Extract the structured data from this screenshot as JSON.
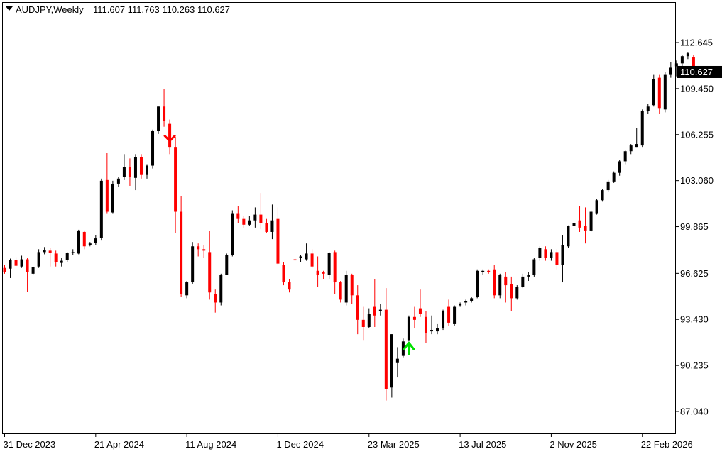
{
  "header": {
    "symbol_timeframe": "AUDJPY,Weekly",
    "ohlc": "111.607 111.763 110.263 110.627"
  },
  "colors": {
    "background": "#ffffff",
    "frame": "#000000",
    "bull": "#000000",
    "bear": "#ff0000",
    "buy_arrow": "#00e000",
    "sell_arrow": "#ff0000",
    "price_label_bg": "#000000",
    "price_label_text": "#ffffff"
  },
  "price_axis": {
    "ticks": [
      "112.645",
      "109.450",
      "106.255",
      "103.060",
      "99.865",
      "96.625",
      "93.430",
      "90.235",
      "87.040"
    ],
    "current_price_label": "110.627"
  },
  "time_axis": {
    "labels": [
      "31 Dec 2023",
      "21 Apr 2024",
      "11 Aug 2024",
      "1 Dec 2024",
      "23 Mar 2025",
      "13 Jul 2025",
      "2 Nov 2025",
      "22 Feb 2026"
    ]
  },
  "chart_data": {
    "type": "candlestick",
    "instrument": "AUDJPY",
    "timeframe": "Weekly",
    "ylim": [
      86.5,
      114.4
    ],
    "current_price": 110.627,
    "grid": false,
    "x_labels": [
      "31 Dec 2023",
      "21 Apr 2024",
      "11 Aug 2024",
      "1 Dec 2024",
      "23 Mar 2025",
      "13 Jul 2025",
      "2 Nov 2025",
      "22 Feb 2026"
    ],
    "x_label_candle_index": [
      0,
      16,
      32,
      48,
      64,
      80,
      96,
      112
    ],
    "ohlc": [
      [
        97.0,
        97.2,
        96.6,
        96.7
      ],
      [
        96.95,
        97.65,
        96.3,
        97.55
      ],
      [
        97.55,
        97.75,
        97.1,
        97.15
      ],
      [
        97.1,
        97.85,
        97.0,
        97.6
      ],
      [
        97.6,
        97.7,
        95.35,
        96.7
      ],
      [
        96.6,
        97.1,
        96.5,
        97.05
      ],
      [
        97.1,
        98.3,
        97.0,
        98.1
      ],
      [
        98.1,
        98.45,
        97.95,
        98.25
      ],
      [
        98.2,
        98.4,
        97.1,
        98.05
      ],
      [
        98.0,
        98.2,
        97.1,
        97.4
      ],
      [
        97.35,
        97.7,
        97.1,
        97.5
      ],
      [
        97.55,
        98.1,
        97.4,
        98.05
      ],
      [
        98.1,
        98.3,
        97.9,
        98.1
      ],
      [
        98.0,
        99.65,
        97.95,
        99.6
      ],
      [
        99.5,
        99.6,
        98.3,
        98.5
      ],
      [
        98.6,
        98.8,
        98.5,
        98.7
      ],
      [
        98.75,
        99.3,
        98.6,
        99.05
      ],
      [
        99.1,
        103.2,
        98.9,
        103.05
      ],
      [
        103.1,
        105.0,
        100.8,
        100.9
      ],
      [
        100.85,
        103.05,
        100.8,
        102.8
      ],
      [
        102.85,
        103.3,
        102.6,
        103.2
      ],
      [
        103.3,
        104.9,
        103.1,
        104.0
      ],
      [
        104.0,
        104.6,
        102.7,
        103.3
      ],
      [
        103.25,
        104.9,
        102.4,
        104.7
      ],
      [
        104.7,
        104.9,
        103.2,
        103.5
      ],
      [
        103.5,
        104.2,
        103.2,
        104.1
      ],
      [
        104.1,
        106.6,
        103.9,
        106.5
      ],
      [
        106.5,
        108.2,
        106.3,
        108.2
      ],
      [
        108.2,
        109.4,
        106.8,
        107.2
      ],
      [
        107.0,
        107.3,
        104.9,
        105.4
      ],
      [
        105.4,
        106.1,
        99.4,
        100.9
      ],
      [
        100.9,
        102.0,
        95.0,
        95.2
      ],
      [
        95.1,
        96.1,
        94.9,
        96.0
      ],
      [
        96.0,
        98.8,
        95.9,
        98.5
      ],
      [
        98.5,
        98.7,
        97.8,
        98.3
      ],
      [
        98.3,
        98.6,
        97.7,
        98.2
      ],
      [
        98.1,
        99.55,
        94.8,
        95.3
      ],
      [
        95.2,
        95.5,
        93.9,
        94.6
      ],
      [
        94.6,
        96.6,
        94.4,
        96.5
      ],
      [
        96.5,
        98.0,
        96.5,
        97.9
      ],
      [
        97.9,
        101.0,
        97.8,
        100.8
      ],
      [
        100.8,
        101.3,
        100.1,
        100.4
      ],
      [
        100.4,
        100.6,
        99.8,
        100.0
      ],
      [
        100.0,
        100.6,
        99.9,
        100.3
      ],
      [
        100.3,
        101.2,
        99.8,
        100.7
      ],
      [
        100.7,
        102.2,
        99.7,
        100.1
      ],
      [
        100.1,
        100.4,
        99.4,
        99.5
      ],
      [
        99.5,
        101.4,
        99.0,
        100.3
      ],
      [
        100.4,
        101.2,
        97.2,
        97.3
      ],
      [
        97.2,
        97.4,
        95.8,
        96.0
      ],
      [
        96.0,
        96.2,
        95.3,
        95.5
      ],
      [
        97.6,
        97.7,
        97.5,
        97.55
      ],
      [
        97.7,
        97.9,
        97.4,
        97.8
      ],
      [
        97.6,
        98.7,
        97.5,
        98.0
      ],
      [
        98.0,
        98.3,
        97.0,
        97.1
      ],
      [
        96.8,
        97.8,
        95.7,
        96.5
      ],
      [
        96.7,
        96.8,
        96.2,
        96.6
      ],
      [
        96.5,
        98.1,
        96.2,
        98.05
      ],
      [
        98.1,
        98.2,
        95.2,
        96.0
      ],
      [
        96.0,
        96.1,
        94.6,
        94.8
      ],
      [
        94.6,
        96.8,
        94.4,
        96.5
      ],
      [
        96.5,
        96.6,
        94.5,
        95.1
      ],
      [
        95.1,
        95.8,
        92.4,
        93.4
      ],
      [
        93.4,
        94.3,
        92.0,
        92.9
      ],
      [
        92.9,
        94.2,
        92.8,
        93.8
      ],
      [
        94.3,
        96.2,
        92.9,
        93.7
      ],
      [
        94.0,
        94.5,
        93.7,
        94.1
      ],
      [
        94.1,
        95.6,
        87.8,
        88.6
      ],
      [
        88.7,
        92.4,
        88.0,
        92.4
      ],
      [
        90.4,
        91.5,
        89.4,
        90.7
      ],
      [
        90.9,
        92.1,
        90.8,
        91.9
      ],
      [
        92.0,
        93.7,
        91.9,
        93.6
      ],
      [
        93.6,
        94.3,
        92.8,
        93.4
      ],
      [
        94.2,
        95.5,
        93.6,
        93.8
      ],
      [
        93.6,
        94.0,
        91.8,
        92.5
      ],
      [
        92.6,
        93.7,
        92.4,
        92.7
      ],
      [
        92.6,
        93.1,
        92.4,
        92.8
      ],
      [
        92.8,
        94.1,
        92.7,
        94.0
      ],
      [
        94.3,
        94.8,
        93.0,
        93.2
      ],
      [
        93.1,
        94.4,
        93.0,
        94.3
      ],
      [
        94.4,
        94.6,
        94.3,
        94.5
      ],
      [
        94.6,
        94.8,
        94.4,
        94.7
      ],
      [
        94.7,
        95.0,
        94.6,
        94.9
      ],
      [
        95.0,
        96.9,
        94.9,
        96.8
      ],
      [
        96.7,
        96.9,
        96.5,
        96.8
      ],
      [
        96.8,
        96.9,
        96.6,
        96.7
      ],
      [
        96.9,
        97.2,
        94.9,
        95.1
      ],
      [
        95.1,
        96.6,
        94.9,
        96.5
      ],
      [
        96.4,
        96.7,
        94.6,
        95.8
      ],
      [
        95.9,
        96.4,
        94.0,
        94.9
      ],
      [
        94.9,
        95.8,
        94.8,
        95.7
      ],
      [
        95.7,
        96.6,
        95.6,
        96.4
      ],
      [
        96.4,
        96.7,
        96.1,
        96.5
      ],
      [
        96.5,
        97.7,
        96.4,
        97.6
      ],
      [
        97.7,
        98.5,
        97.5,
        98.4
      ],
      [
        98.3,
        98.5,
        97.5,
        97.7
      ],
      [
        97.7,
        98.3,
        97.5,
        98.1
      ],
      [
        98.1,
        98.3,
        96.9,
        97.2
      ],
      [
        97.2,
        99.3,
        96.0,
        98.6
      ],
      [
        98.5,
        99.95,
        98.4,
        99.9
      ],
      [
        99.9,
        100.2,
        99.8,
        100.1
      ],
      [
        100.3,
        101.3,
        99.5,
        99.8
      ],
      [
        99.9,
        101.2,
        98.7,
        99.6
      ],
      [
        99.6,
        101.0,
        99.5,
        100.9
      ],
      [
        100.8,
        101.8,
        100.7,
        101.7
      ],
      [
        101.7,
        102.5,
        101.6,
        102.4
      ],
      [
        102.4,
        103.1,
        102.3,
        103.0
      ],
      [
        103.0,
        103.7,
        102.9,
        103.6
      ],
      [
        103.6,
        104.5,
        103.4,
        104.4
      ],
      [
        104.4,
        105.2,
        104.2,
        105.1
      ],
      [
        105.1,
        105.6,
        104.9,
        105.5
      ],
      [
        105.4,
        106.7,
        105.4,
        105.6
      ],
      [
        105.5,
        108.0,
        105.4,
        107.9
      ],
      [
        107.9,
        108.4,
        107.7,
        108.2
      ],
      [
        108.3,
        110.4,
        108.2,
        110.1
      ],
      [
        110.2,
        110.4,
        107.7,
        108.1
      ],
      [
        108.0,
        110.6,
        107.8,
        110.4
      ],
      [
        110.4,
        111.3,
        110.2,
        110.9
      ],
      [
        111.0,
        111.4,
        110.3,
        111.2
      ],
      [
        111.2,
        111.8,
        111.0,
        111.7
      ],
      [
        111.7,
        112.0,
        111.5,
        111.9
      ],
      [
        111.61,
        111.76,
        110.26,
        110.63
      ]
    ],
    "signals": [
      {
        "type": "sell",
        "candle_index": 29
      },
      {
        "type": "buy",
        "candle_index": 71
      }
    ]
  }
}
